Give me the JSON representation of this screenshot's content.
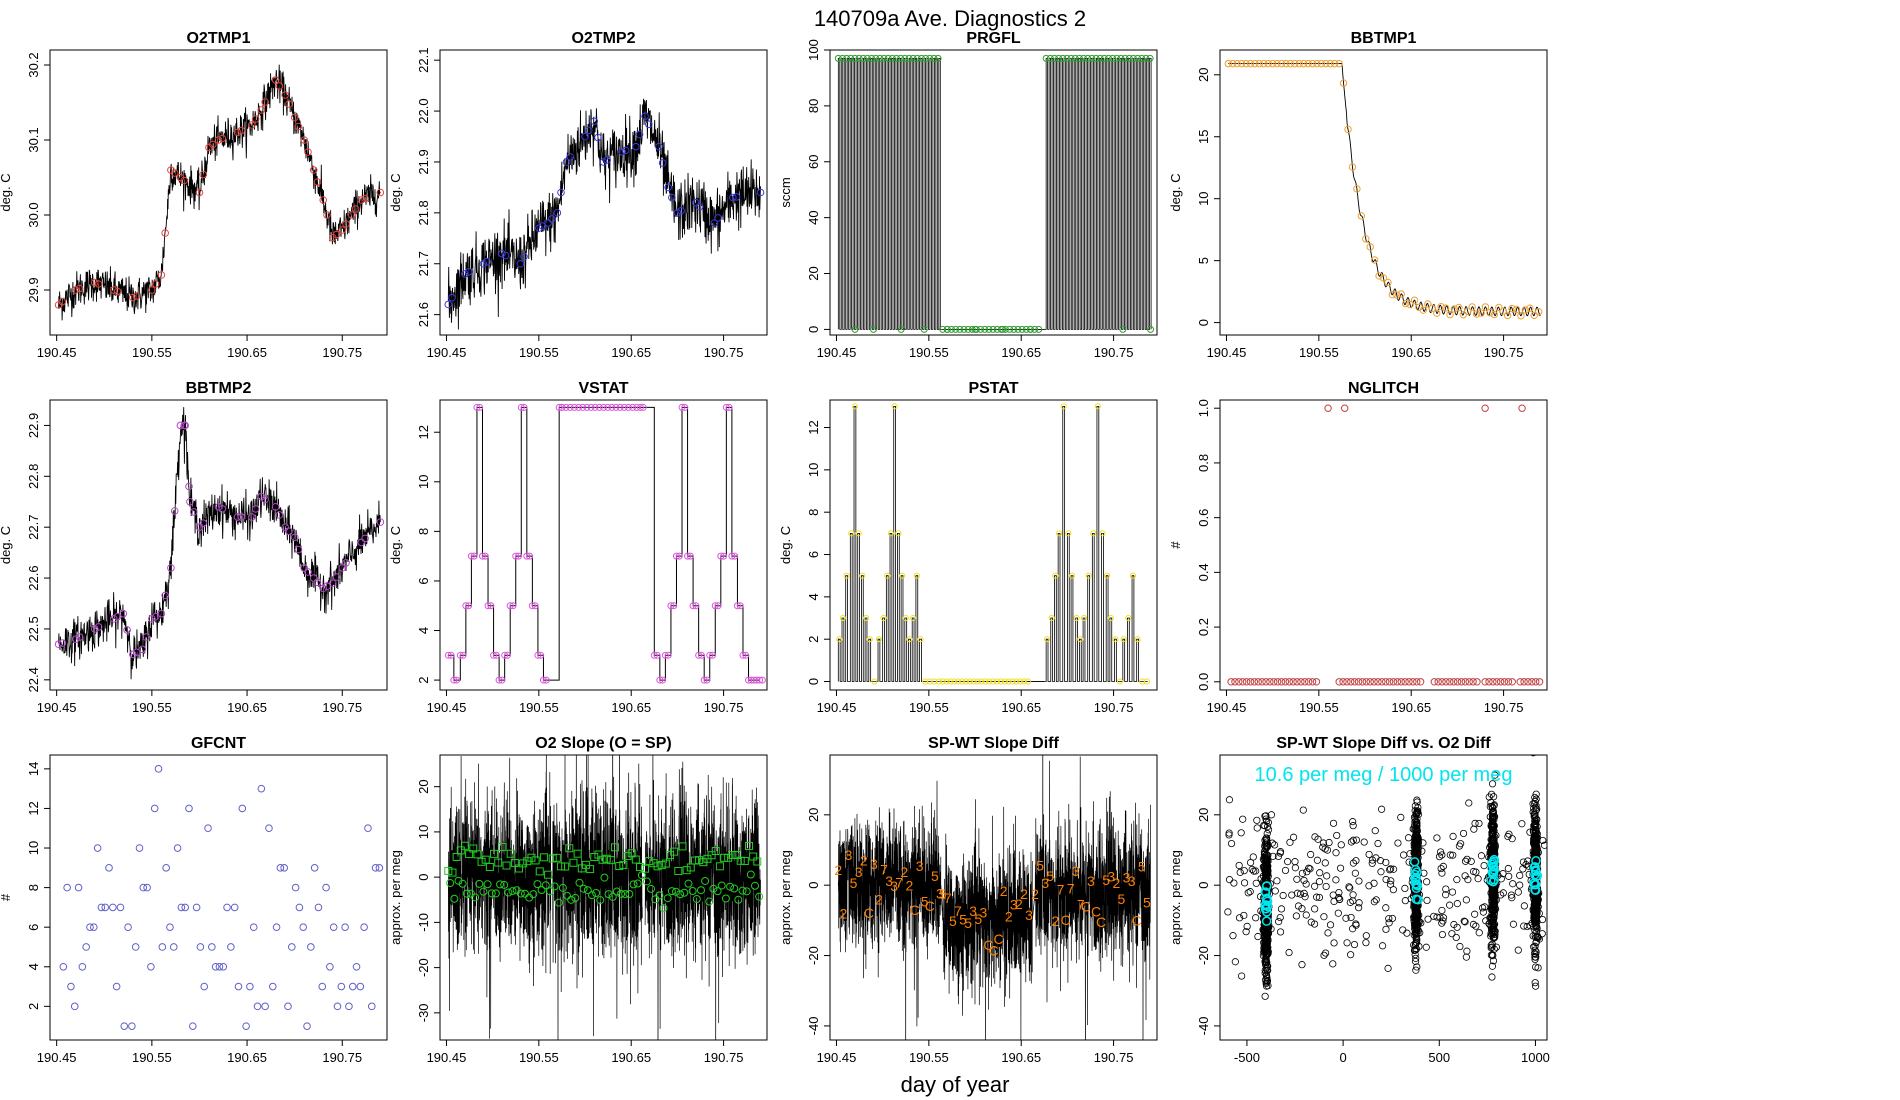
{
  "figure": {
    "title": "140709a   Ave. Diagnostics 2",
    "xlabel": "day of year"
  },
  "colors": {
    "line": "#000000",
    "red": "#e8413b",
    "blue": "#3a3ae0",
    "green": "#2e9e2e",
    "orange": "#f0a030",
    "purple": "#b347c8",
    "magenta": "#dd55dd",
    "yellow": "#f0e020",
    "brown": "#c04040",
    "slate": "#6060cc",
    "bright_green": "#22cc22",
    "dark_orange": "#ff8000",
    "cyan": "#00e5ee"
  },
  "chart_data": [
    {
      "id": "o2tmp1",
      "type": "line",
      "title": "O2TMP1",
      "ylabel": "deg. C",
      "xlim": [
        190.443,
        190.797
      ],
      "ylim": [
        29.84,
        30.22
      ],
      "xticks": [
        "190.45",
        "190.55",
        "190.65",
        "190.75"
      ],
      "yticks": [
        "29.9",
        "30.0",
        "30.1",
        "30.2"
      ],
      "marker": "circle",
      "marker_color": "red",
      "noise": 0.012,
      "x": [
        190.452,
        190.47,
        190.49,
        190.51,
        190.53,
        190.55,
        190.56,
        190.57,
        190.58,
        190.6,
        190.61,
        190.62,
        190.64,
        190.655,
        190.665,
        190.68,
        190.69,
        190.7,
        190.71,
        190.72,
        190.73,
        190.74,
        190.75,
        190.76,
        190.77,
        190.79
      ],
      "y": [
        29.88,
        29.9,
        29.91,
        29.9,
        29.89,
        29.9,
        29.92,
        30.06,
        30.05,
        30.03,
        30.09,
        30.1,
        30.11,
        30.12,
        30.14,
        30.18,
        30.16,
        30.13,
        30.1,
        30.06,
        30.02,
        29.97,
        29.98,
        30.0,
        30.02,
        30.03
      ]
    },
    {
      "id": "o2tmp2",
      "type": "line",
      "title": "O2TMP2",
      "ylabel": "deg. C",
      "xlim": [
        190.443,
        190.797
      ],
      "ylim": [
        21.56,
        22.12
      ],
      "xticks": [
        "190.45",
        "190.55",
        "190.65",
        "190.75"
      ],
      "yticks": [
        "21.6",
        "21.7",
        "21.8",
        "21.9",
        "22.0",
        "22.1"
      ],
      "marker": "circle",
      "marker_color": "blue",
      "noise": 0.03,
      "x": [
        190.452,
        190.47,
        190.49,
        190.51,
        190.53,
        190.55,
        190.56,
        190.57,
        190.58,
        190.6,
        190.61,
        190.62,
        190.64,
        190.655,
        190.665,
        190.68,
        190.69,
        190.7,
        190.72,
        190.74,
        190.76,
        190.79
      ],
      "y": [
        21.62,
        21.68,
        21.7,
        21.72,
        21.7,
        21.77,
        21.78,
        21.8,
        21.9,
        21.95,
        21.98,
        21.9,
        21.92,
        21.93,
        21.99,
        21.93,
        21.85,
        21.8,
        21.82,
        21.78,
        21.83,
        21.84
      ]
    },
    {
      "id": "prgfl",
      "type": "line",
      "title": "PRGFL",
      "ylabel": "sccm",
      "xlim": [
        190.443,
        190.797
      ],
      "ylim": [
        -2,
        100
      ],
      "xticks": [
        "190.45",
        "190.55",
        "190.65",
        "190.75"
      ],
      "yticks": [
        "0",
        "20",
        "40",
        "60",
        "80",
        "100"
      ],
      "marker": "circle",
      "marker_color": "green",
      "mode": "pulse",
      "low": 0,
      "high": 97,
      "period": 0.0032,
      "segments": [
        [
          190.452,
          190.563
        ],
        [
          190.677,
          190.79
        ]
      ],
      "flat": [
        190.565,
        190.675
      ]
    },
    {
      "id": "bbtmp1",
      "type": "line",
      "title": "BBTMP1",
      "ylabel": "deg. C",
      "xlim": [
        190.443,
        190.797
      ],
      "ylim": [
        -1,
        22
      ],
      "xticks": [
        "190.45",
        "190.55",
        "190.65",
        "190.75"
      ],
      "yticks": [
        "0",
        "5",
        "10",
        "15",
        "20"
      ],
      "marker": "circle",
      "marker_color": "orange",
      "mode": "decay",
      "start": 20.9,
      "t0": 190.575,
      "tau": 0.022,
      "floor": 0.9,
      "ripple": 0.35,
      "end_x": 190.79
    },
    {
      "id": "bbtmp2",
      "type": "line",
      "title": "BBTMP2",
      "ylabel": "deg. C",
      "xlim": [
        190.443,
        190.797
      ],
      "ylim": [
        22.38,
        22.95
      ],
      "xticks": [
        "190.45",
        "190.55",
        "190.65",
        "190.75"
      ],
      "yticks": [
        "22.4",
        "22.5",
        "22.6",
        "22.7",
        "22.8",
        "22.9"
      ],
      "marker": "circle",
      "marker_color": "purple",
      "noise": 0.02,
      "x": [
        190.452,
        190.47,
        190.49,
        190.51,
        190.52,
        190.53,
        190.54,
        190.55,
        190.56,
        190.57,
        190.58,
        190.585,
        190.59,
        190.6,
        190.62,
        190.64,
        190.655,
        190.665,
        190.68,
        190.69,
        190.7,
        190.71,
        190.72,
        190.73,
        190.74,
        190.75,
        190.77,
        190.79
      ],
      "y": [
        22.47,
        22.48,
        22.5,
        22.52,
        22.53,
        22.45,
        22.46,
        22.52,
        22.53,
        22.62,
        22.9,
        22.9,
        22.75,
        22.7,
        22.74,
        22.72,
        22.72,
        22.76,
        22.74,
        22.7,
        22.68,
        22.62,
        22.6,
        22.58,
        22.59,
        22.62,
        22.67,
        22.71
      ]
    },
    {
      "id": "vstat",
      "type": "line",
      "title": "VSTAT",
      "ylabel": "deg. C",
      "xlim": [
        190.443,
        190.797
      ],
      "ylim": [
        1.6,
        13.3
      ],
      "xticks": [
        "190.45",
        "190.55",
        "190.65",
        "190.75"
      ],
      "yticks": [
        "2",
        "4",
        "6",
        "8",
        "10",
        "12"
      ],
      "marker": "circle",
      "marker_color": "magenta",
      "mode": "step",
      "x": [
        190.452,
        190.458,
        190.465,
        190.471,
        190.477,
        190.483,
        190.489,
        190.495,
        190.501,
        190.507,
        190.513,
        190.519,
        190.525,
        190.531,
        190.537,
        190.543,
        190.549,
        190.555,
        190.572,
        190.66,
        190.675,
        190.681,
        190.687,
        190.693,
        190.699,
        190.705,
        190.711,
        190.717,
        190.723,
        190.729,
        190.735,
        190.741,
        190.747,
        190.753,
        190.759,
        190.765,
        190.771,
        190.777,
        190.783,
        190.789
      ],
      "y": [
        3,
        2,
        3,
        5,
        7,
        13,
        7,
        5,
        3,
        2,
        3,
        5,
        7,
        13,
        7,
        5,
        3,
        2,
        13,
        13,
        3,
        2,
        3,
        5,
        7,
        13,
        7,
        5,
        3,
        2,
        3,
        5,
        7,
        13,
        7,
        5,
        3,
        2,
        2,
        2
      ]
    },
    {
      "id": "pstat",
      "type": "line",
      "title": "PSTAT",
      "ylabel": "deg. C",
      "xlim": [
        190.443,
        190.797
      ],
      "ylim": [
        -0.4,
        13.3
      ],
      "xticks": [
        "190.45",
        "190.55",
        "190.65",
        "190.75"
      ],
      "yticks": [
        "0",
        "2",
        "4",
        "6",
        "8",
        "10",
        "12"
      ],
      "marker": "circle",
      "marker_color": "yellow",
      "mode": "spikes",
      "x": [
        190.452,
        190.456,
        190.46,
        190.465,
        190.469,
        190.473,
        190.477,
        190.481,
        190.485,
        190.49,
        190.495,
        190.5,
        190.504,
        190.508,
        190.512,
        190.516,
        190.52,
        190.524,
        190.528,
        190.532,
        190.536,
        190.54,
        190.545,
        190.55,
        190.555,
        190.56,
        190.677,
        190.682,
        190.686,
        190.69,
        190.695,
        190.7,
        190.704,
        190.709,
        190.713,
        190.717,
        190.722,
        190.727,
        190.732,
        190.737,
        190.742,
        190.746,
        190.751,
        190.756,
        190.76,
        190.765,
        190.77,
        190.775,
        190.78,
        190.785
      ],
      "y": [
        2,
        3,
        5,
        7,
        13,
        7,
        5,
        3,
        2,
        0,
        2,
        3,
        5,
        7,
        13,
        7,
        5,
        3,
        2,
        3,
        5,
        2,
        0,
        0,
        0,
        0,
        2,
        3,
        5,
        7,
        13,
        7,
        5,
        3,
        2,
        3,
        5,
        7,
        13,
        7,
        5,
        3,
        2,
        0,
        2,
        3,
        5,
        2,
        0,
        0
      ],
      "flat": [
        190.565,
        190.675
      ]
    },
    {
      "id": "nglitch",
      "type": "scatter",
      "title": "NGLITCH",
      "ylabel": "#",
      "xlim": [
        190.443,
        190.797
      ],
      "ylim": [
        -0.03,
        1.03
      ],
      "xticks": [
        "190.45",
        "190.55",
        "190.65",
        "190.75"
      ],
      "yticks": [
        "0.0",
        "0.2",
        "0.4",
        "0.6",
        "0.8",
        "1.0"
      ],
      "marker": "circle",
      "marker_color": "brown",
      "mode": "zeros",
      "zero_ranges": [
        [
          190.455,
          190.548
        ],
        [
          190.572,
          190.662
        ],
        [
          190.675,
          190.723
        ],
        [
          190.73,
          190.762
        ],
        [
          190.768,
          190.79
        ]
      ],
      "ones": [
        190.56,
        190.578,
        190.73,
        190.77
      ]
    },
    {
      "id": "gfcnt",
      "type": "scatter",
      "title": "GFCNT",
      "ylabel": "#",
      "xlim": [
        190.443,
        190.797
      ],
      "ylim": [
        0.3,
        14.7
      ],
      "xticks": [
        "190.45",
        "190.55",
        "190.65",
        "190.75"
      ],
      "yticks": [
        "2",
        "4",
        "6",
        "8",
        "10",
        "12",
        "14"
      ],
      "marker": "circle",
      "marker_color": "slate",
      "x": [
        190.457,
        190.461,
        190.465,
        190.469,
        190.473,
        190.477,
        190.481,
        190.485,
        190.489,
        190.493,
        190.497,
        190.501,
        190.505,
        190.509,
        190.513,
        190.517,
        190.521,
        190.525,
        190.529,
        190.533,
        190.537,
        190.541,
        190.545,
        190.549,
        190.553,
        190.557,
        190.561,
        190.565,
        190.569,
        190.573,
        190.577,
        190.581,
        190.585,
        190.589,
        190.593,
        190.597,
        190.601,
        190.605,
        190.609,
        190.613,
        190.617,
        190.621,
        190.625,
        190.629,
        190.633,
        190.637,
        190.641,
        190.645,
        190.649,
        190.653,
        190.657,
        190.661,
        190.665,
        190.669,
        190.673,
        190.677,
        190.681,
        190.685,
        190.689,
        190.693,
        190.697,
        190.701,
        190.705,
        190.709,
        190.713,
        190.717,
        190.721,
        190.725,
        190.729,
        190.733,
        190.737,
        190.741,
        190.745,
        190.749,
        190.753,
        190.757,
        190.761,
        190.765,
        190.769,
        190.773,
        190.777,
        190.781,
        190.785,
        190.789
      ],
      "y": [
        4,
        8,
        3,
        2,
        8,
        4,
        5,
        6,
        6,
        10,
        7,
        7,
        9,
        7,
        3,
        7,
        1,
        6,
        1,
        5,
        10,
        8,
        8,
        4,
        12,
        14,
        5,
        9,
        6,
        5,
        10,
        7,
        7,
        12,
        1,
        7,
        5,
        3,
        11,
        5,
        4,
        4,
        4,
        7,
        5,
        7,
        3,
        12,
        1,
        3,
        6,
        2,
        13,
        2,
        11,
        3,
        6,
        9,
        9,
        2,
        5,
        8,
        7,
        6,
        1,
        5,
        9,
        7,
        3,
        8,
        4,
        6,
        2,
        3,
        6,
        2,
        3,
        4,
        3,
        6,
        11,
        2,
        9,
        9
      ]
    },
    {
      "id": "o2slope",
      "type": "line",
      "title": "O2 Slope (O = SP)",
      "ylabel": "approx. per meg",
      "xlim": [
        190.443,
        190.797
      ],
      "ylim": [
        -36,
        27
      ],
      "xticks": [
        "190.45",
        "190.55",
        "190.65",
        "190.75"
      ],
      "yticks": [
        "-30",
        "-20",
        "-10",
        "0",
        "10",
        "20"
      ],
      "mode": "band",
      "band": [
        [
          190.452,
          190.563,
          0,
          8
        ],
        [
          190.565,
          190.662,
          0,
          9
        ],
        [
          190.665,
          190.79,
          0,
          8
        ]
      ],
      "marker_color": "bright_green"
    },
    {
      "id": "spwt",
      "type": "line",
      "title": "SP-WT Slope Diff",
      "ylabel": "approx. per meg",
      "xlim": [
        190.443,
        190.797
      ],
      "ylim": [
        -44,
        37
      ],
      "xticks": [
        "190.45",
        "190.55",
        "190.65",
        "190.75"
      ],
      "yticks": [
        "-40",
        "-20",
        "0",
        "20"
      ],
      "mode": "band",
      "band": [
        [
          190.452,
          190.563,
          0,
          9
        ],
        [
          190.565,
          190.662,
          -10,
          9
        ],
        [
          190.665,
          190.79,
          -2,
          9
        ]
      ],
      "marker_color": "dark_orange",
      "labels": [
        "3",
        "5",
        "7",
        "2",
        "C"
      ]
    },
    {
      "id": "spwt_vs_o2",
      "type": "scatter",
      "title": "SP-WT Slope Diff vs. O2 Diff",
      "ylabel": "approx. per meg",
      "xlim": [
        -640,
        1060
      ],
      "ylim": [
        -44,
        37
      ],
      "xticks": [
        "-500",
        "0",
        "500",
        "1000"
      ],
      "yticks": [
        "-40",
        "-20",
        "0",
        "20"
      ],
      "annotation": "10.6 per meg / 1000 per meg",
      "clusters": [
        [
          -400,
          -6
        ],
        [
          380,
          0
        ],
        [
          780,
          4
        ],
        [
          1000,
          2
        ]
      ],
      "marker_color": "cyan"
    }
  ]
}
